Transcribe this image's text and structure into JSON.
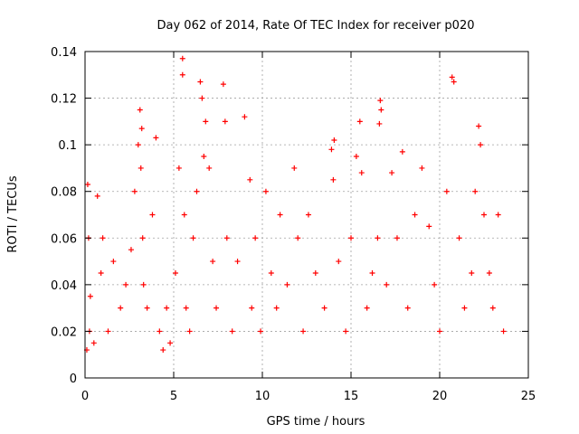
{
  "chart_data": {
    "type": "scatter",
    "title": "Day 062 of 2014, Rate Of TEC Index for receiver p020",
    "xlabel": "GPS time / hours",
    "ylabel": "ROTI / TECUs",
    "xlim": [
      0,
      25
    ],
    "ylim": [
      0,
      0.14
    ],
    "x_ticks": [
      0,
      5,
      10,
      15,
      20,
      25
    ],
    "y_ticks": [
      0,
      0.02,
      0.04,
      0.06,
      0.08,
      0.1,
      0.12,
      0.14
    ],
    "x_tick_labels": [
      "0",
      "5",
      "10",
      "15",
      "20",
      "25"
    ],
    "y_tick_labels": [
      "0",
      "0.02",
      "0.04",
      "0.06",
      "0.08",
      "0.1",
      "0.12",
      "0.14"
    ],
    "grid": true,
    "marker": "+",
    "series_color": "#ff0000",
    "series": [
      {
        "name": "ROTI",
        "x": [
          0.1,
          0.15,
          0.2,
          0.25,
          0.3,
          0.5,
          0.7,
          0.9,
          1.0,
          1.3,
          1.6,
          2.0,
          2.3,
          2.6,
          2.8,
          3.0,
          3.1,
          3.15,
          3.2,
          3.25,
          3.3,
          3.5,
          3.8,
          4.0,
          4.2,
          4.4,
          4.6,
          4.8,
          5.1,
          5.3,
          5.5,
          5.5,
          5.6,
          5.7,
          5.9,
          6.1,
          6.3,
          6.5,
          6.6,
          6.7,
          6.8,
          7.0,
          7.2,
          7.4,
          7.8,
          7.9,
          8.0,
          8.3,
          8.6,
          9.0,
          9.3,
          9.4,
          9.6,
          9.9,
          10.2,
          10.5,
          10.8,
          11.0,
          11.4,
          11.8,
          12.0,
          12.3,
          12.6,
          13.0,
          13.5,
          13.9,
          14.0,
          14.05,
          14.3,
          14.7,
          15.0,
          15.3,
          15.5,
          15.6,
          15.9,
          16.2,
          16.5,
          16.6,
          16.65,
          16.7,
          17.0,
          17.3,
          17.6,
          17.9,
          18.2,
          18.6,
          19.0,
          19.4,
          19.7,
          20.0,
          20.4,
          20.7,
          20.8,
          21.1,
          21.4,
          21.8,
          22.0,
          22.2,
          22.3,
          22.5,
          22.8,
          23.0,
          23.3,
          23.6
        ],
        "y": [
          0.012,
          0.083,
          0.06,
          0.02,
          0.035,
          0.015,
          0.078,
          0.045,
          0.06,
          0.02,
          0.05,
          0.03,
          0.04,
          0.055,
          0.08,
          0.1,
          0.115,
          0.09,
          0.107,
          0.06,
          0.04,
          0.03,
          0.07,
          0.103,
          0.02,
          0.012,
          0.03,
          0.015,
          0.045,
          0.09,
          0.137,
          0.13,
          0.07,
          0.03,
          0.02,
          0.06,
          0.08,
          0.127,
          0.12,
          0.095,
          0.11,
          0.09,
          0.05,
          0.03,
          0.126,
          0.11,
          0.06,
          0.02,
          0.05,
          0.112,
          0.085,
          0.03,
          0.06,
          0.02,
          0.08,
          0.045,
          0.03,
          0.07,
          0.04,
          0.09,
          0.06,
          0.02,
          0.07,
          0.045,
          0.03,
          0.098,
          0.085,
          0.102,
          0.05,
          0.02,
          0.06,
          0.095,
          0.11,
          0.088,
          0.03,
          0.045,
          0.06,
          0.109,
          0.119,
          0.115,
          0.04,
          0.088,
          0.06,
          0.097,
          0.03,
          0.07,
          0.09,
          0.065,
          0.04,
          0.02,
          0.08,
          0.129,
          0.127,
          0.06,
          0.03,
          0.045,
          0.08,
          0.108,
          0.1,
          0.07,
          0.045,
          0.03,
          0.07,
          0.02
        ]
      }
    ]
  }
}
